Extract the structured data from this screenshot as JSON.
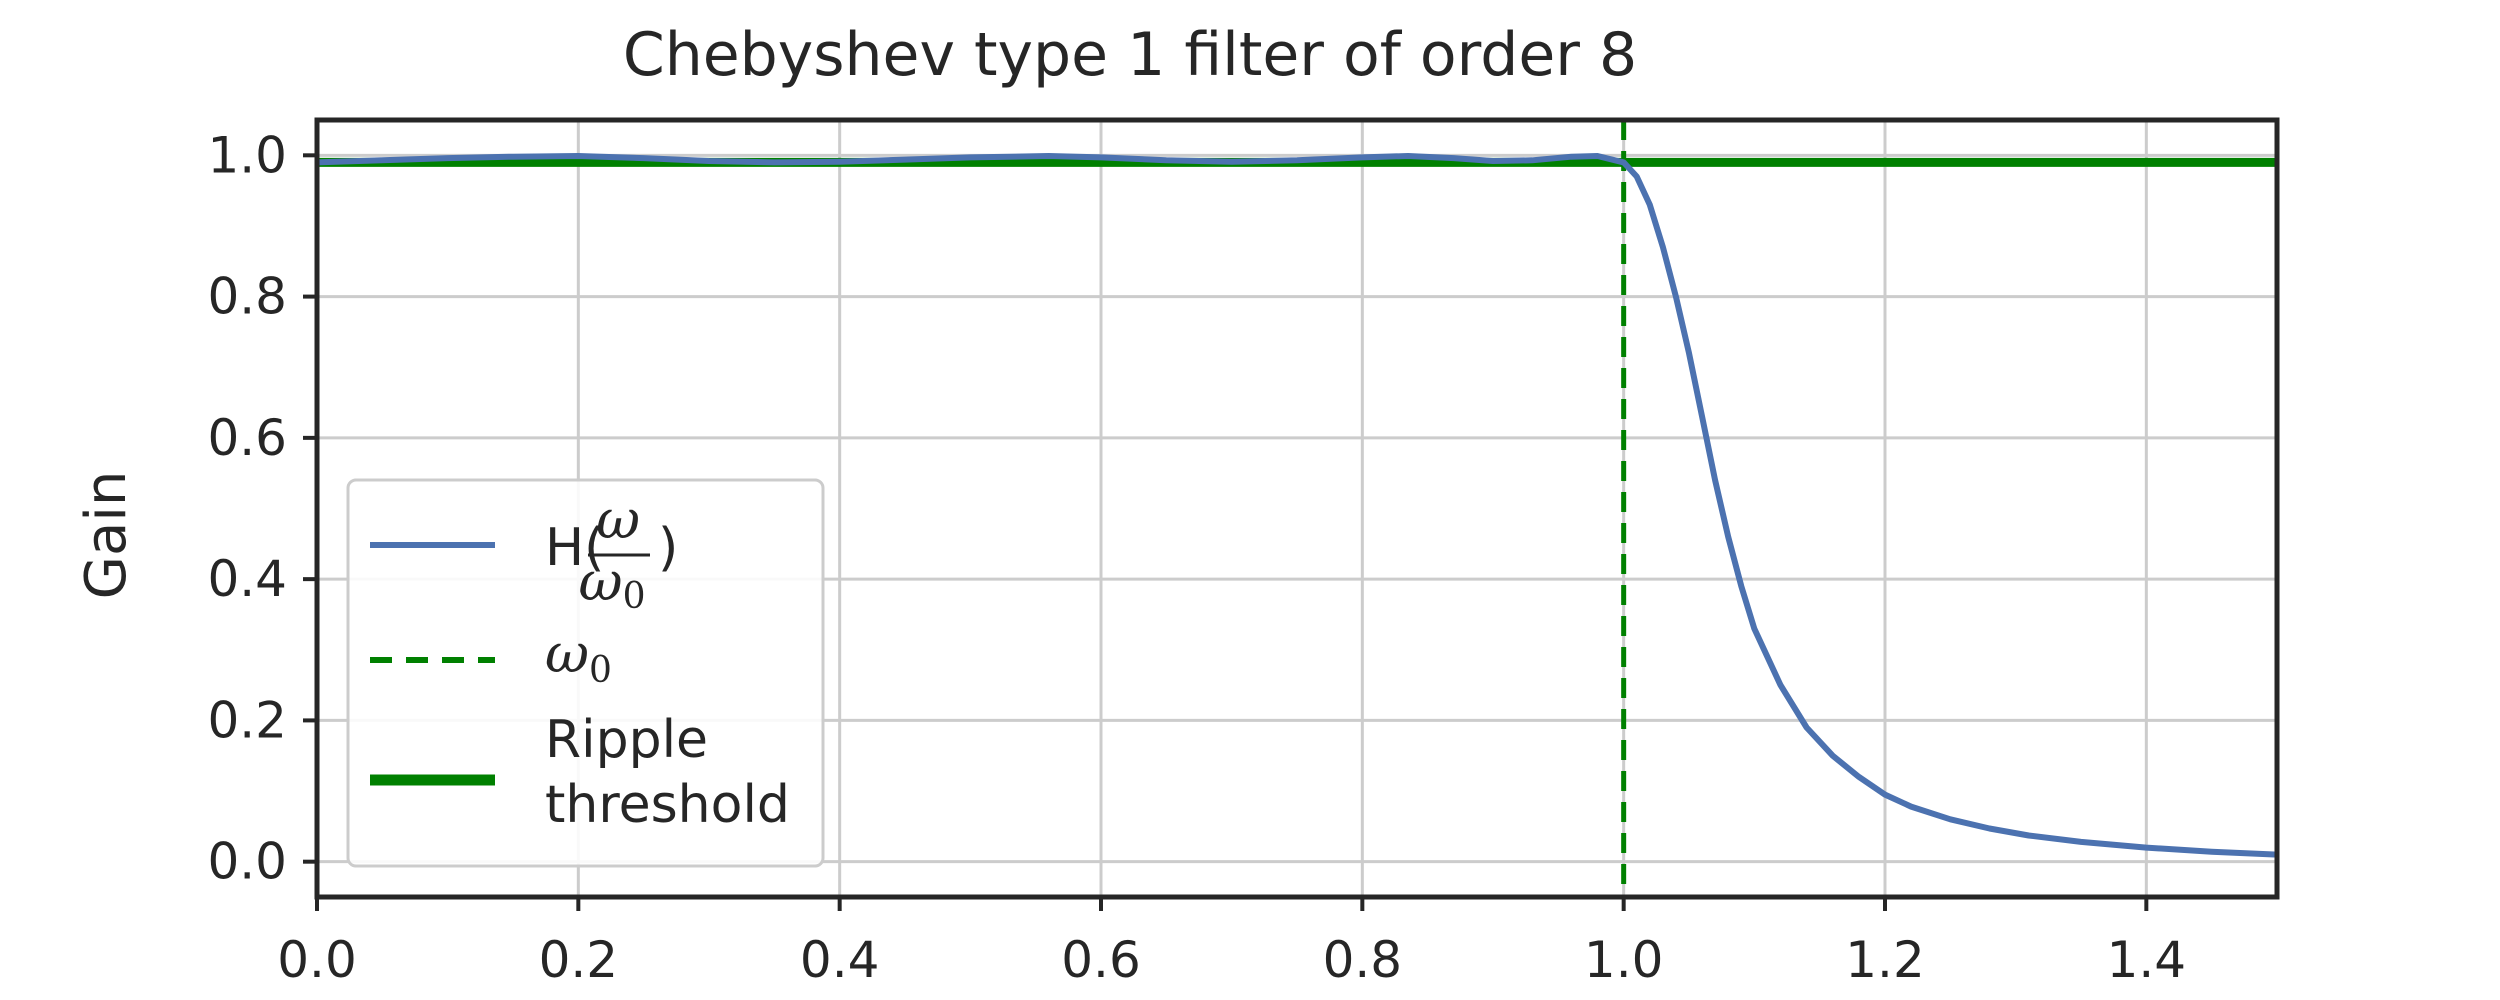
{
  "chart_data": {
    "type": "line",
    "title": "Chebyshev type 1 filter of order 8",
    "xlabel": "",
    "ylabel": "Gain",
    "xlim": [
      0.0,
      1.5
    ],
    "ylim": [
      -0.05,
      1.05
    ],
    "xticks": [
      "0.0",
      "0.2",
      "0.4",
      "0.6",
      "0.8",
      "1.0",
      "1.2",
      "1.4"
    ],
    "yticks": [
      "0.0",
      "0.2",
      "0.4",
      "0.6",
      "0.8",
      "1.0"
    ],
    "grid": true,
    "legend_position": "lower-left",
    "series": [
      {
        "name": "H(ω/ω0)",
        "legend_text": "H(",
        "legend_text_close": ")",
        "legend_frac_num": "ω",
        "legend_frac_den": "ω",
        "legend_frac_den_sub": "0",
        "color": "#4c72b0",
        "style": "solid",
        "x": [
          0.0,
          0.05,
          0.1,
          0.15,
          0.2,
          0.25,
          0.3,
          0.35,
          0.4,
          0.45,
          0.5,
          0.56,
          0.6,
          0.65,
          0.7,
          0.75,
          0.8,
          0.835,
          0.87,
          0.9,
          0.93,
          0.96,
          0.98,
          1.0,
          1.01,
          1.02,
          1.03,
          1.04,
          1.05,
          1.06,
          1.07,
          1.08,
          1.09,
          1.1,
          1.12,
          1.14,
          1.16,
          1.18,
          1.2,
          1.22,
          1.25,
          1.28,
          1.31,
          1.35,
          1.4,
          1.45,
          1.5
        ],
        "y": [
          0.99,
          0.993,
          0.996,
          0.998,
          0.999,
          0.996,
          0.992,
          0.99,
          0.991,
          0.994,
          0.997,
          0.999,
          0.997,
          0.993,
          0.991,
          0.993,
          0.997,
          0.999,
          0.996,
          0.992,
          0.993,
          0.998,
          0.999,
          0.99,
          0.97,
          0.93,
          0.87,
          0.8,
          0.72,
          0.63,
          0.54,
          0.46,
          0.39,
          0.33,
          0.25,
          0.19,
          0.15,
          0.12,
          0.095,
          0.078,
          0.06,
          0.047,
          0.037,
          0.028,
          0.02,
          0.014,
          0.01
        ]
      },
      {
        "name": "ω0",
        "legend_text": "ω",
        "legend_sub": "0",
        "color": "#008000",
        "style": "dashed",
        "x_value": 1.0
      },
      {
        "name": "Ripple threshold",
        "legend_line1": "Ripple",
        "legend_line2": "threshold",
        "color": "#008000",
        "style": "solid-thick",
        "y_value": 0.99
      }
    ]
  }
}
